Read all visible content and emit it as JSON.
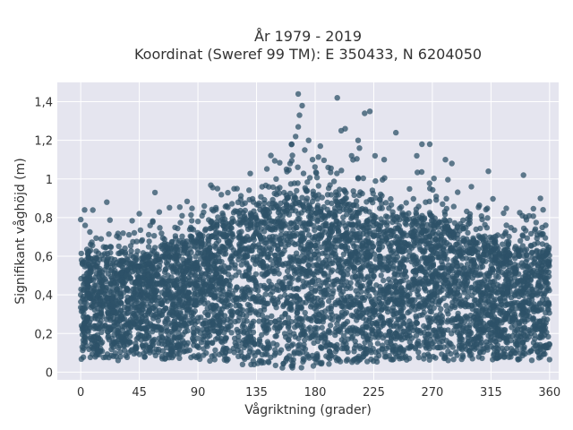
{
  "chart_data": {
    "type": "scatter",
    "title": [
      "År 1979 - 2019",
      "Koordinat (Sweref 99 TM): E 350433, N 6204050"
    ],
    "xlabel": "Vågriktning (grader)",
    "ylabel": "Signifikant våghöjd (m)",
    "xlim": [
      -18,
      367
    ],
    "ylim": [
      -0.04,
      1.5
    ],
    "x_ticks": [
      0,
      45,
      90,
      135,
      180,
      225,
      270,
      315,
      360
    ],
    "x_tick_labels": [
      "0",
      "45",
      "90",
      "135",
      "180",
      "225",
      "270",
      "315",
      "360"
    ],
    "y_ticks": [
      0,
      0.2,
      0.4,
      0.6,
      0.8,
      1.0,
      1.2,
      1.4
    ],
    "y_tick_labels": [
      "0",
      "0,2",
      "0,4",
      "0,6",
      "0,8",
      "1",
      "1,2",
      "1,4"
    ],
    "grid": true,
    "legend": "none",
    "marker_color": "#2e5168",
    "background_color": "#e5e5ef",
    "envelope": {
      "description_x": [
        0,
        20,
        45,
        60,
        90,
        110,
        135,
        150,
        165,
        180,
        195,
        210,
        225,
        250,
        270,
        300,
        315,
        340,
        360
      ],
      "upper": [
        0.6,
        0.58,
        0.58,
        0.64,
        0.72,
        0.78,
        0.84,
        0.9,
        0.92,
        0.9,
        0.88,
        0.86,
        0.82,
        0.8,
        0.78,
        0.72,
        0.68,
        0.64,
        0.62
      ],
      "lower": [
        0.06,
        0.06,
        0.06,
        0.06,
        0.06,
        0.05,
        0.03,
        0.02,
        0.02,
        0.03,
        0.04,
        0.05,
        0.05,
        0.06,
        0.06,
        0.06,
        0.06,
        0.06,
        0.06
      ]
    },
    "outliers": [
      {
        "x": 0,
        "y": 0.79
      },
      {
        "x": 3,
        "y": 0.84
      },
      {
        "x": 20,
        "y": 0.88
      },
      {
        "x": 45,
        "y": 0.82
      },
      {
        "x": 57,
        "y": 0.93
      },
      {
        "x": 90,
        "y": 0.78
      },
      {
        "x": 105,
        "y": 0.95
      },
      {
        "x": 120,
        "y": 0.95
      },
      {
        "x": 150,
        "y": 1.0
      },
      {
        "x": 158,
        "y": 1.05
      },
      {
        "x": 162,
        "y": 1.18
      },
      {
        "x": 165,
        "y": 1.22
      },
      {
        "x": 167,
        "y": 1.27
      },
      {
        "x": 167,
        "y": 1.44
      },
      {
        "x": 170,
        "y": 1.38
      },
      {
        "x": 168,
        "y": 1.33
      },
      {
        "x": 172,
        "y": 1.15
      },
      {
        "x": 175,
        "y": 1.2
      },
      {
        "x": 178,
        "y": 1.1
      },
      {
        "x": 184,
        "y": 1.17
      },
      {
        "x": 190,
        "y": 1.06
      },
      {
        "x": 197,
        "y": 1.42
      },
      {
        "x": 200,
        "y": 1.25
      },
      {
        "x": 203,
        "y": 1.26
      },
      {
        "x": 208,
        "y": 1.12
      },
      {
        "x": 213,
        "y": 1.2
      },
      {
        "x": 214,
        "y": 1.16
      },
      {
        "x": 218,
        "y": 1.34
      },
      {
        "x": 222,
        "y": 1.35
      },
      {
        "x": 226,
        "y": 1.12
      },
      {
        "x": 233,
        "y": 1.1
      },
      {
        "x": 242,
        "y": 1.24
      },
      {
        "x": 258,
        "y": 1.12
      },
      {
        "x": 262,
        "y": 1.18
      },
      {
        "x": 268,
        "y": 1.18
      },
      {
        "x": 280,
        "y": 1.1
      },
      {
        "x": 285,
        "y": 1.08
      },
      {
        "x": 300,
        "y": 0.96
      },
      {
        "x": 313,
        "y": 1.04
      },
      {
        "x": 340,
        "y": 1.02
      },
      {
        "x": 353,
        "y": 0.9
      },
      {
        "x": 357,
        "y": 0.76
      }
    ]
  }
}
